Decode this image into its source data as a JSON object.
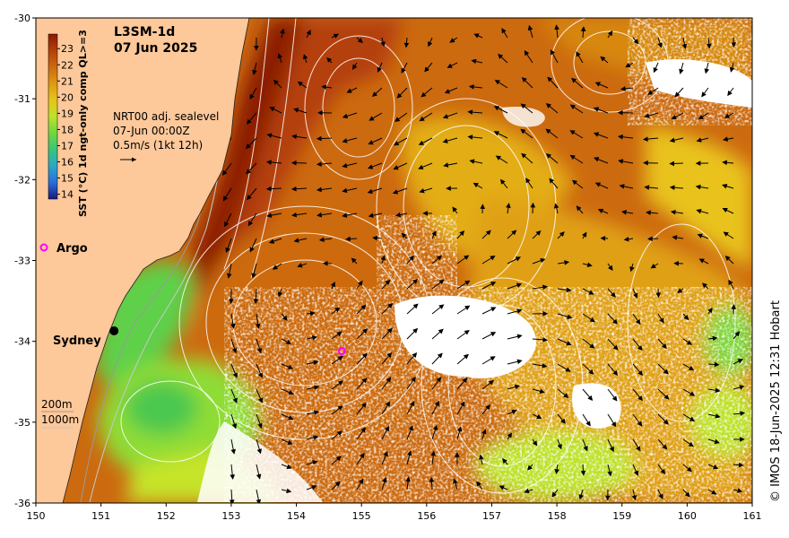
{
  "title": {
    "product": "L3SM-1d",
    "date": "07 Jun 2025"
  },
  "colorbar": {
    "label": "SST (°C) 1d ngt-only comp QL>=3",
    "ticks": [
      "23",
      "22",
      "21",
      "20",
      "19",
      "18",
      "17",
      "16",
      "15",
      "14"
    ],
    "colors": [
      "#8b1a00",
      "#b4400a",
      "#cc6a10",
      "#dd9a10",
      "#e9c31a",
      "#bde22a",
      "#6fd640",
      "#3bc57a",
      "#2aa6c8",
      "#2a6fd9",
      "#2233b8",
      "#1a1a7a"
    ]
  },
  "vectors_info": {
    "line1": "NRT00 adj. sealevel",
    "line2": "07-Jun 00:00Z",
    "line3": "0.5m/s (1kt 12h)"
  },
  "labels": {
    "argo": "Argo",
    "sydney": "Sydney",
    "depth_200": "200m",
    "depth_1000": "1000m"
  },
  "axes": {
    "x_ticks": [
      "150",
      "151",
      "152",
      "153",
      "154",
      "155",
      "156",
      "157",
      "158",
      "159",
      "160",
      "161"
    ],
    "y_ticks": [
      "-30",
      "-31",
      "-32",
      "-33",
      "-34",
      "-35",
      "-36"
    ],
    "lon_range": [
      150,
      161
    ],
    "lat_range": [
      -36,
      -30
    ]
  },
  "points": {
    "sydney": {
      "lon": 151.2,
      "lat": -33.87
    },
    "argo_float": {
      "lon": 154.7,
      "lat": -34.12
    }
  },
  "colors": {
    "land": "#fdc89a",
    "argo_marker": "#ff00ff",
    "no_data": "#ffffff"
  },
  "credit": "© IMOS 18-Jun-2025 12:31 Hobart"
}
